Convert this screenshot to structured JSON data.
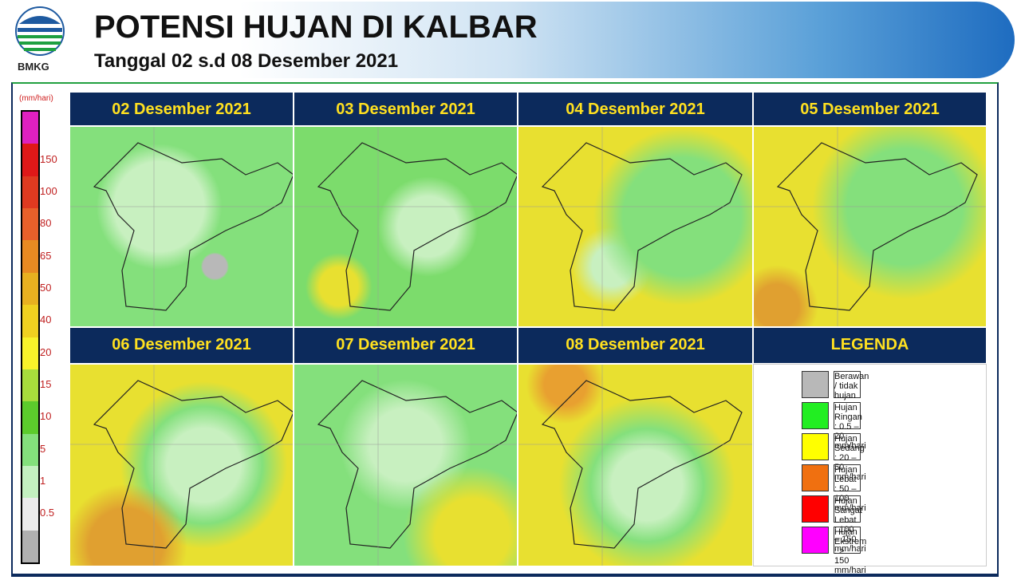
{
  "header": {
    "logo_text": "BMKG",
    "title": "POTENSI HUJAN DI KALBAR",
    "subtitle": "Tanggal 02 s.d 08 Desember 2021"
  },
  "colorbar": {
    "unit": "(mm/hari)",
    "colors": [
      "#e020c0",
      "#e01818",
      "#e03a20",
      "#e8602a",
      "#e88a22",
      "#e8b020",
      "#f0d020",
      "#f8f22a",
      "#a8dc3c",
      "#5ccc2c",
      "#84e07c",
      "#c4f0c0",
      "#ececec",
      "#b0b0b0"
    ],
    "labels": [
      "150",
      "100",
      "80",
      "65",
      "50",
      "40",
      "20",
      "15",
      "10",
      "5",
      "1",
      "0.5"
    ]
  },
  "panels": [
    "02 Desember 2021",
    "03 Desember 2021",
    "04 Desember 2021",
    "05 Desember 2021",
    "06 Desember 2021",
    "07 Desember 2021",
    "08 Desember 2021"
  ],
  "legend": {
    "title": "LEGENDA",
    "items": [
      {
        "color": "#b8b8b8",
        "label": "Berawan / tidak hujan"
      },
      {
        "color": "#22ee22",
        "label": "Hujan Ringan : 0.5 – 20 mm/hari"
      },
      {
        "color": "#ffff00",
        "label": "Hujan Sedang : 20 – 50 mm/hari"
      },
      {
        "color": "#f07010",
        "label": "Hujan Lebat : 50 – 100 mm/hari"
      },
      {
        "color": "#ff0000",
        "label": "Hujan Sangat Lebat : 100 – 150 mm/hari"
      },
      {
        "color": "#ff00ff",
        "label": "Hujan Ekstrem : > 150 mm/hari"
      }
    ]
  }
}
